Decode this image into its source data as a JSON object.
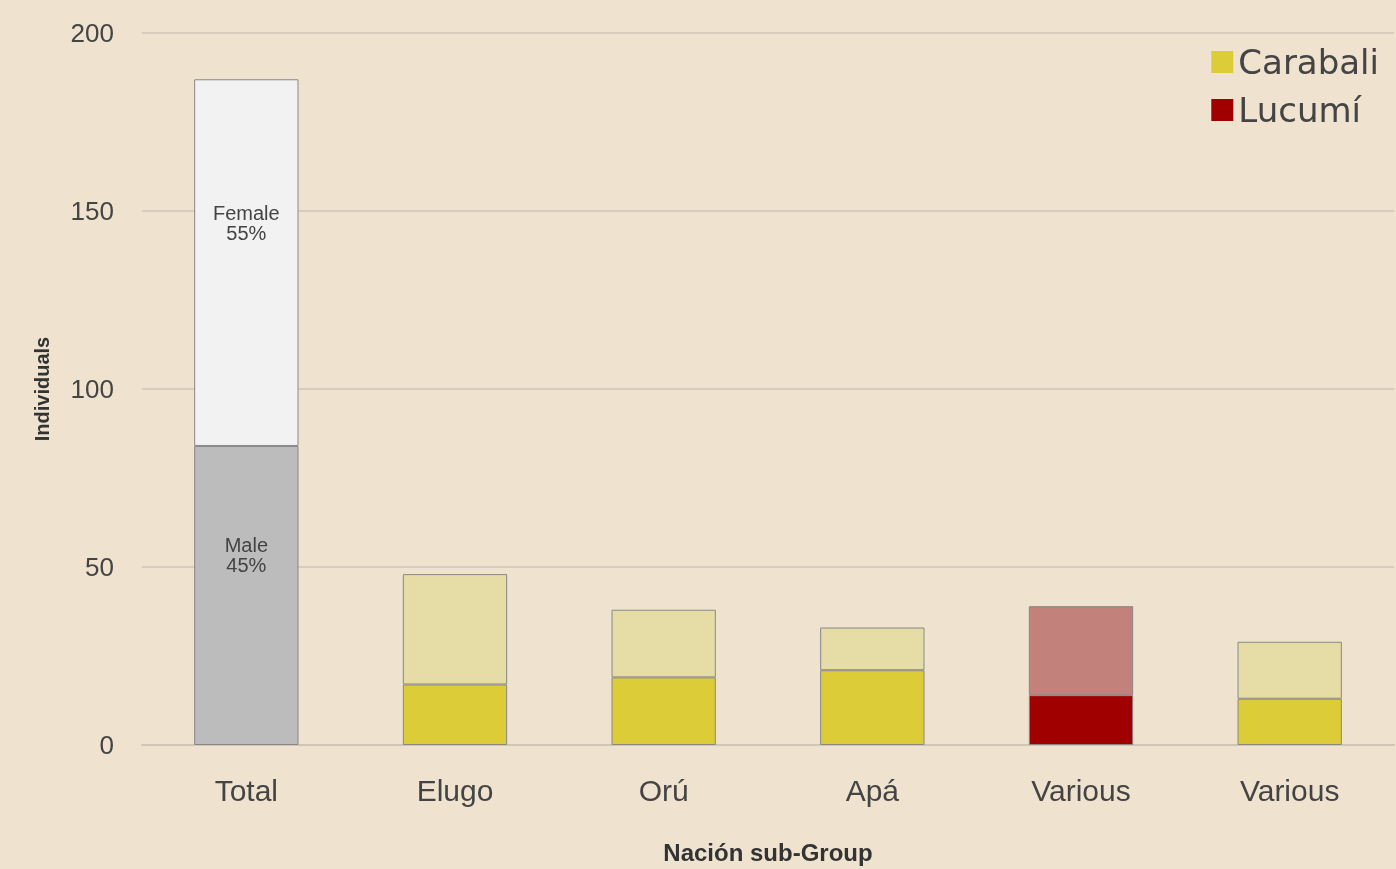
{
  "chart_data": {
    "type": "bar",
    "stacked": true,
    "xlabel": "Nación sub-Group",
    "ylabel": "Individuals",
    "categories": [
      "Total",
      "Elugo",
      "Orú",
      "Apá",
      "Various",
      "Various"
    ],
    "series": [
      {
        "color": "#bcbcbc",
        "values": [
          84,
          null,
          null,
          null,
          null,
          null
        ],
        "value_labels": [
          "Male\n45%",
          null,
          null,
          null,
          null,
          null
        ]
      },
      {
        "name": "Carabali",
        "color": "#dccd38",
        "values": [
          null,
          17,
          19,
          21,
          null,
          13
        ]
      },
      {
        "name": "Lucumí",
        "color": "#a00000",
        "values": [
          null,
          null,
          null,
          null,
          14,
          null
        ]
      },
      {
        "colors": [
          "#f2f2f2",
          "#e5dca6",
          "#e5dca6",
          "#e5dca6",
          "#c2817a",
          "#e5dca6"
        ],
        "values": [
          103,
          31,
          19,
          12,
          25,
          16
        ],
        "value_labels": [
          "Female\n55%",
          null,
          null,
          null,
          null,
          null
        ]
      }
    ],
    "ylim": [
      0,
      200
    ],
    "yticks": [
      0,
      50,
      100,
      150,
      200
    ],
    "grid": "y",
    "legend": "top right"
  }
}
